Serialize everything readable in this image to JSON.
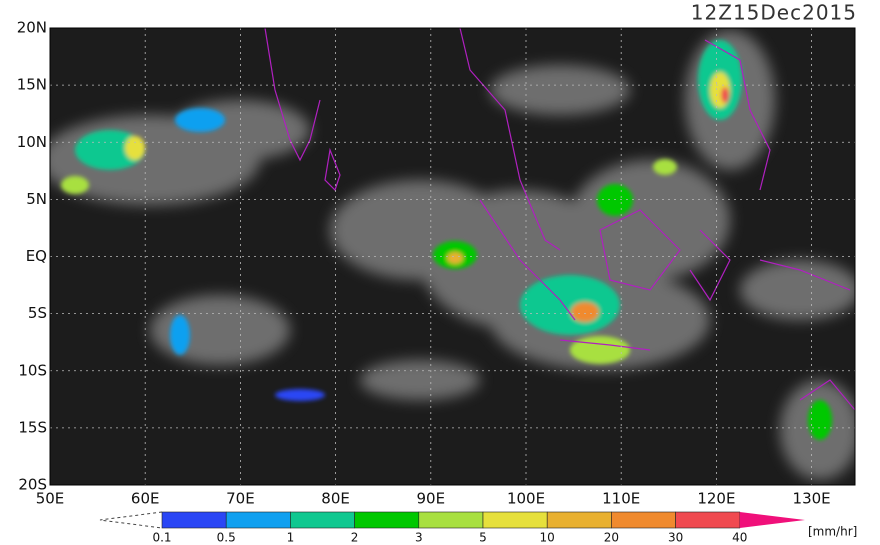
{
  "header": {
    "title": "12Z15Dec2015"
  },
  "map": {
    "lat_labels": [
      "20N",
      "15N",
      "10N",
      "5N",
      "EQ",
      "5S",
      "10S",
      "15S",
      "20S"
    ],
    "lon_labels": [
      "50E",
      "60E",
      "70E",
      "80E",
      "90E",
      "100E",
      "110E",
      "120E",
      "130E"
    ]
  },
  "colorbar": {
    "levels": [
      0.1,
      0.5,
      1,
      2,
      3,
      5,
      10,
      20,
      30,
      40
    ],
    "colors": [
      "#2a46f5",
      "#10a0f0",
      "#10c890",
      "#00c800",
      "#a8e040",
      "#e6e03c",
      "#e8b030",
      "#f08a2e",
      "#f04a50"
    ],
    "over_color": "#f0107a",
    "unit": "[mm/hr]"
  }
}
